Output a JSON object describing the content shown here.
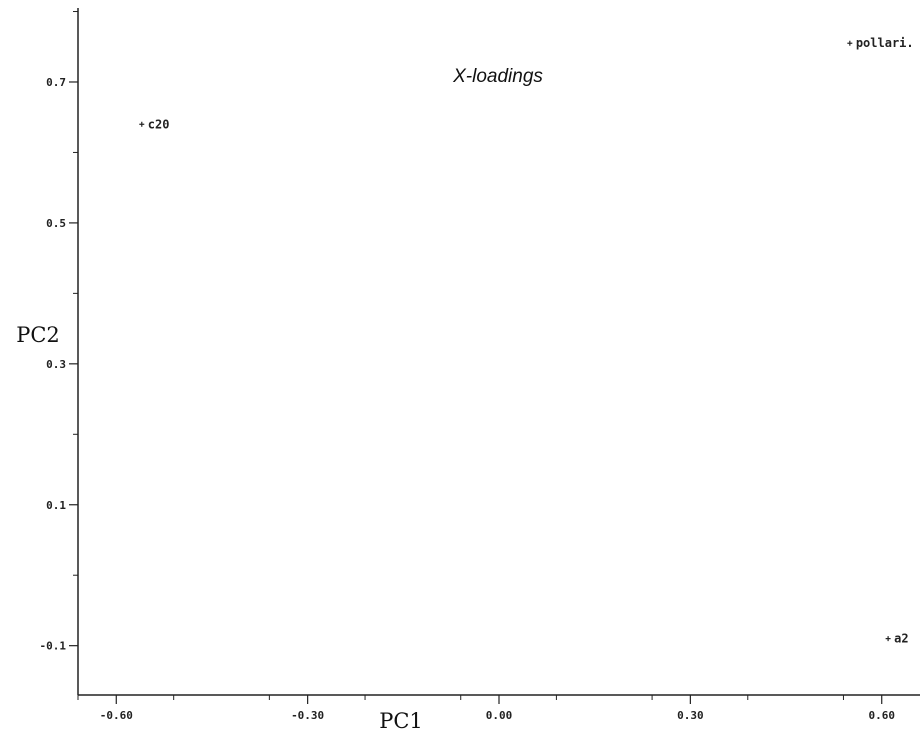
{
  "chart_data": {
    "type": "scatter",
    "title": "X-loadings",
    "xlabel": "PC1",
    "ylabel": "PC2",
    "xlim": [
      -0.66,
      0.66
    ],
    "ylim": [
      -0.17,
      0.805
    ],
    "x_ticks": [
      -0.6,
      -0.3,
      0.0,
      0.3,
      0.6
    ],
    "x_tick_labels": [
      "-0.60",
      "-0.30",
      "0.00",
      "0.30",
      "0.60"
    ],
    "y_ticks": [
      -0.1,
      0.1,
      0.3,
      0.5,
      0.7
    ],
    "y_tick_labels": [
      "-0.1",
      "0.1",
      "0.3",
      "0.5",
      "0.7"
    ],
    "grid": false,
    "points": [
      {
        "label": "c20",
        "x": -0.56,
        "y": 0.64
      },
      {
        "label": "pollari.",
        "x": 0.55,
        "y": 0.755
      },
      {
        "label": "a2",
        "x": 0.61,
        "y": -0.09
      }
    ],
    "colors": {
      "axis": "#222222",
      "marker": "#222222"
    }
  }
}
